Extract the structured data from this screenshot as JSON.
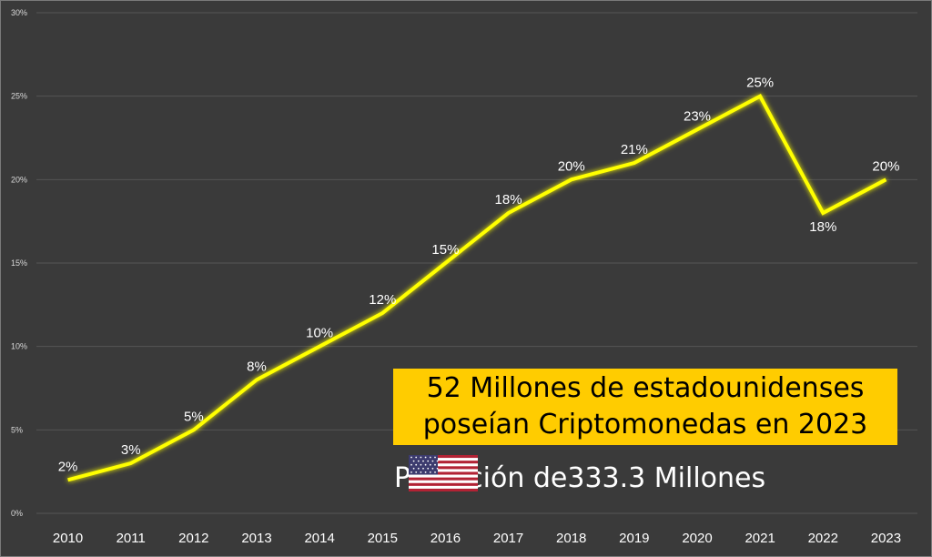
{
  "chart_data": {
    "type": "line",
    "categories": [
      "2010",
      "2011",
      "2012",
      "2013",
      "2014",
      "2015",
      "2016",
      "2017",
      "2018",
      "2019",
      "2020",
      "2021",
      "2022",
      "2023"
    ],
    "series": [
      {
        "values": [
          2,
          3,
          5,
          8,
          10,
          12,
          15,
          18,
          20,
          21,
          23,
          25,
          18,
          20
        ]
      }
    ],
    "data_labels": [
      "2%",
      "3%",
      "5%",
      "8%",
      "10%",
      "12%",
      "15%",
      "18%",
      "20%",
      "21%",
      "23%",
      "25%",
      "18%",
      "20%"
    ],
    "y_ticks": [
      "0%",
      "5%",
      "10%",
      "15%",
      "20%",
      "25%",
      "30%"
    ],
    "ylim": [
      0,
      30
    ],
    "grid": true,
    "line_color": "#ffff00",
    "background_color": "#3a3a3a"
  },
  "annotation": {
    "headline_line1": "52 Millones de estadounidenses",
    "headline_line2": "poseían Criptomonedas en 2023",
    "population_prefix": "Población de",
    "population_flag_icon": "us-flag-icon",
    "population_value": "333.3 Millones",
    "headline_bg_color": "#ffcc00"
  }
}
